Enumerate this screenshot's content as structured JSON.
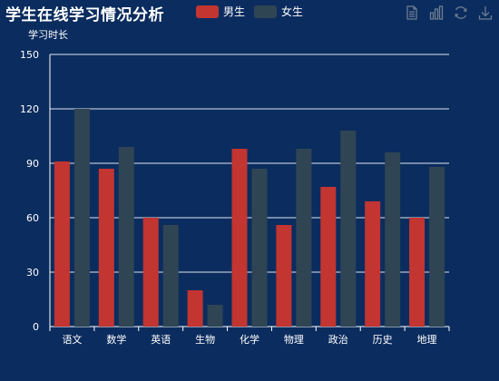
{
  "header": {
    "title": "学生在线学习情况分析"
  },
  "legend": {
    "items": [
      {
        "label": "男生",
        "color": "#c23531"
      },
      {
        "label": "女生",
        "color": "#2f4554"
      }
    ]
  },
  "toolbox": {
    "icons": [
      "data-view-icon",
      "bar-chart-icon",
      "restore-icon",
      "download-icon"
    ]
  },
  "chart_data": {
    "type": "bar",
    "ylabel": "学习时长",
    "xlabel": "",
    "ylim": [
      0,
      150
    ],
    "yticks": [
      0,
      30,
      60,
      90,
      120,
      150
    ],
    "grid": true,
    "legend_position": "top",
    "categories": [
      "语文",
      "数学",
      "英语",
      "生物",
      "化学",
      "物理",
      "政治",
      "历史",
      "地理"
    ],
    "series": [
      {
        "name": "男生",
        "color": "#c23531",
        "values": [
          91,
          87,
          60,
          20,
          98,
          56,
          77,
          69,
          60
        ]
      },
      {
        "name": "女生",
        "color": "#2f4554",
        "values": [
          120,
          99,
          56,
          12,
          87,
          98,
          108,
          96,
          88
        ]
      }
    ]
  }
}
